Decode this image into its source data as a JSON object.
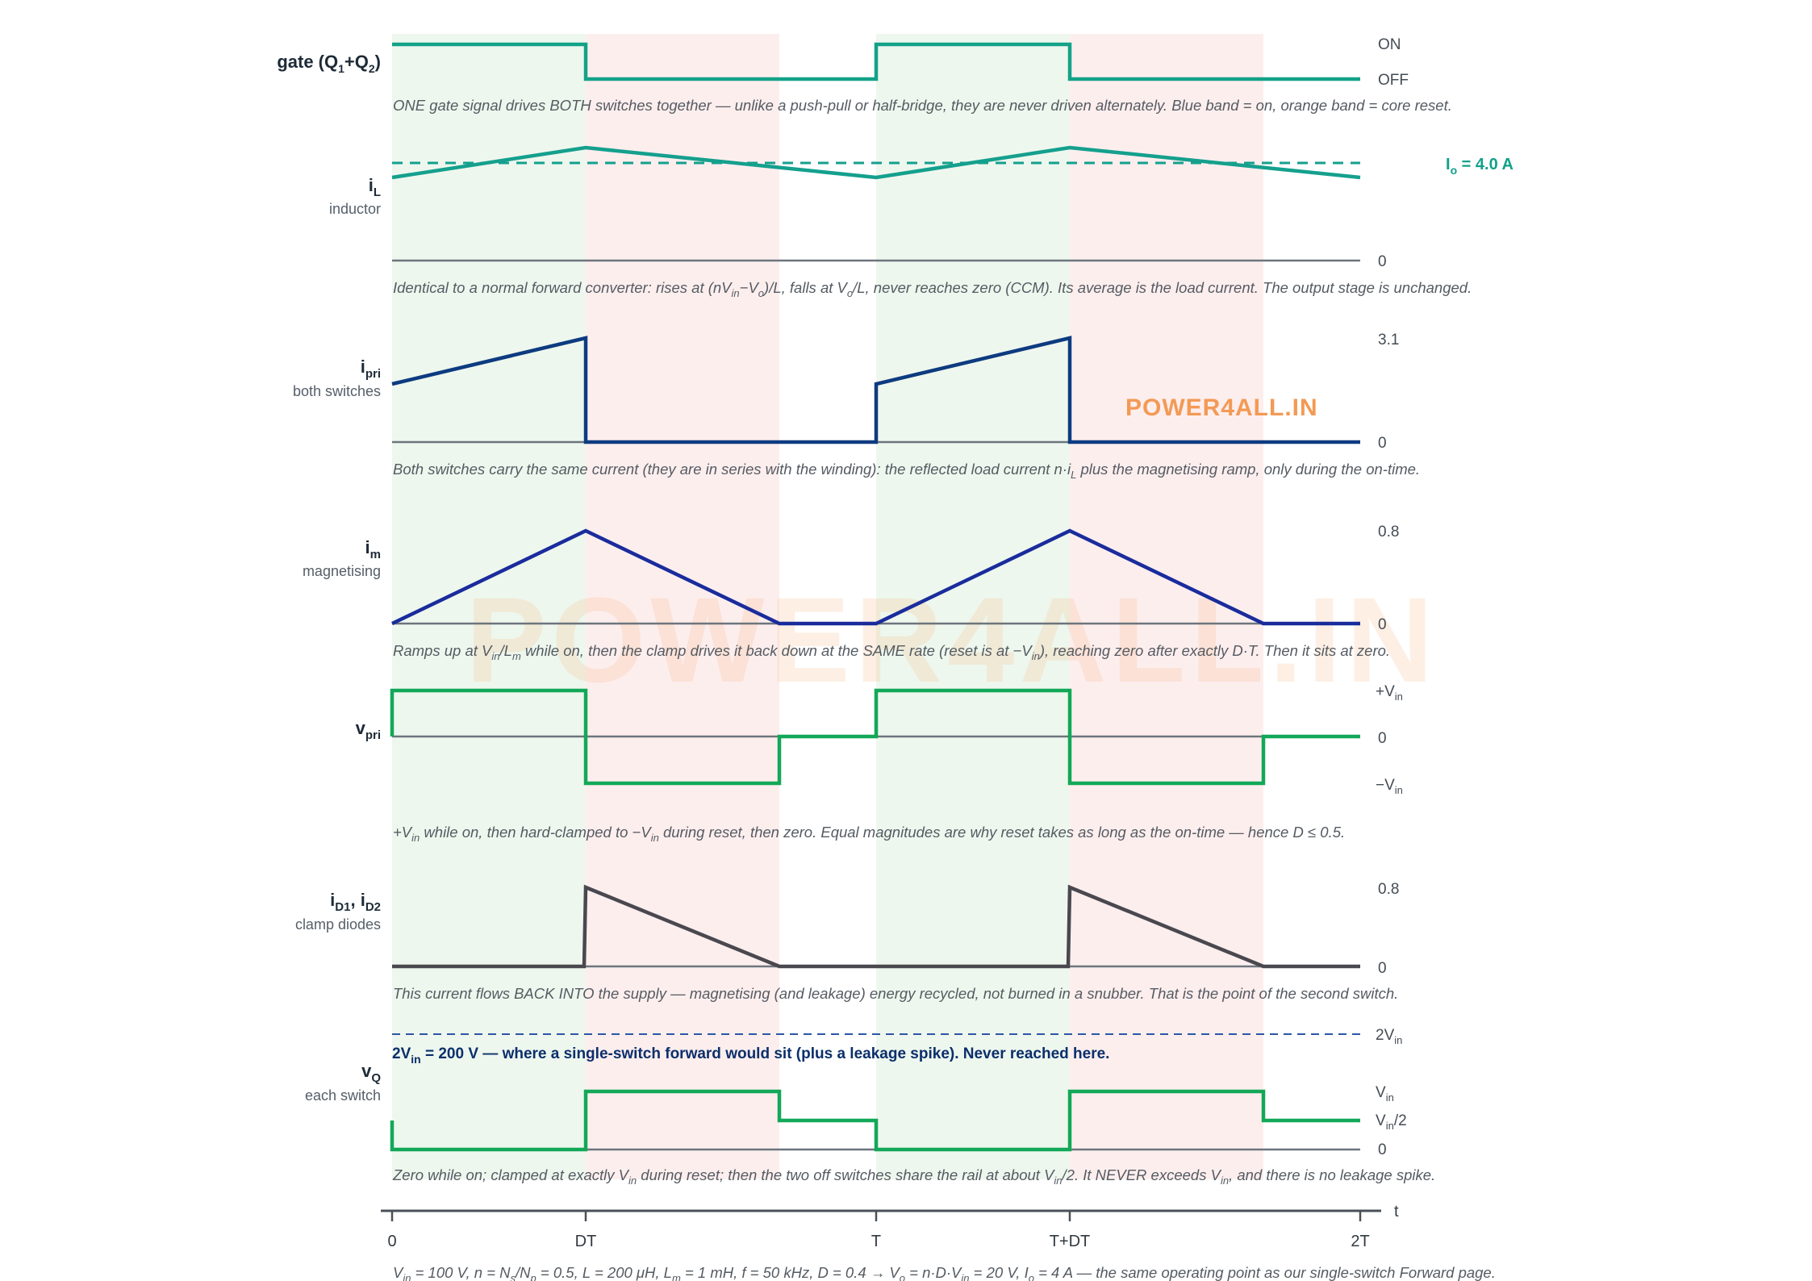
{
  "diagram": {
    "colors": {
      "on_band": "#eef7ee",
      "reset_band": "#fdeeee",
      "gate": "#13a288",
      "inductor": "#14a08d",
      "primary": "#0d3b80",
      "magnetising": "#1a2c9c",
      "vpri": "#12a858",
      "diode": "#4a484f",
      "vq": "#12a858",
      "baseline": "#6c757c",
      "dashed_ref": "#2c56a6"
    },
    "watermark": {
      "small": "POWER4ALL.IN",
      "large": "POWER4ALL.IN"
    },
    "time_axis": {
      "ticks": [
        "0",
        "DT",
        "T",
        "T+DT",
        "2T"
      ],
      "label": "t"
    },
    "panels": {
      "gate": {
        "label_main": "gate (Q",
        "label_s1": "1",
        "label_plus": "+Q",
        "label_s2": "2",
        "label_close": ")",
        "tick_on": "ON",
        "tick_off": "OFF",
        "note": "ONE gate signal drives BOTH switches together — unlike a push-pull or half-bridge, they are never driven alternately. Blue band = on, orange band = core reset."
      },
      "il": {
        "label_main": "i",
        "label_sub": "L",
        "label_desc": "inductor",
        "tick_zero": "0",
        "io_main": "I",
        "io_sub": "o",
        "io_value": " = 4.0 A",
        "note": {
          "p1": "Identical to a normal forward converter: rises at (nV",
          "s1": "in",
          "p2": "−V",
          "s2": "o",
          "p3": ")/L, falls at V",
          "s3": "o",
          "p4": "/L, never reaches zero (CCM). Its average is the load current. The output stage is unchanged."
        }
      },
      "ipri": {
        "label_main": "i",
        "label_sub": "pri",
        "label_desc": "both switches",
        "tick_top": "3.1",
        "tick_zero": "0",
        "note": {
          "p1": "Both switches carry the same current (they are in series with the winding): the reflected load current n·i",
          "s1": "L",
          "p2": " plus the magnetising ramp, only during the on-time."
        }
      },
      "im": {
        "label_main": "i",
        "label_sub": "m",
        "label_desc": "magnetising",
        "tick_top": "0.8",
        "tick_zero": "0",
        "note": {
          "p1": "Ramps up at V",
          "s1": "in",
          "p2": "/L",
          "s2": "m",
          "p3": " while on, then the clamp drives it back down at the SAME rate (reset is at −V",
          "s3": "in",
          "p4": "), reaching zero after exactly D·T. Then it sits at zero."
        }
      },
      "vpri": {
        "label_main": "v",
        "label_sub": "pri",
        "tick_top_main": "+V",
        "tick_top_sub": "in",
        "tick_zero": "0",
        "tick_bot_main": "−V",
        "tick_bot_sub": "in",
        "note": {
          "p1": "+V",
          "s1": "in",
          "p2": " while on, then hard-clamped to −V",
          "s2": "in",
          "p3": " during reset, then zero. Equal magnitudes are why reset takes as long as the on-time — hence D ≤ 0.5."
        }
      },
      "id": {
        "label_m1": "i",
        "label_s1": "D1",
        "label_sep": ", i",
        "label_s2": "D2",
        "label_desc": "clamp diodes",
        "tick_top": "0.8",
        "tick_zero": "0",
        "note": "This current flows BACK INTO the supply — magnetising (and leakage) energy recycled, not burned in a snubber. That is the point of the second switch."
      },
      "vq": {
        "label_main": "v",
        "label_sub": "Q",
        "label_desc": "each switch",
        "tick_2v_main": "2V",
        "tick_2v_sub": "in",
        "tick_v_main": "V",
        "tick_v_sub": "in",
        "tick_half_main": "V",
        "tick_half_sub": "in",
        "tick_half_tail": "/2",
        "tick_zero": "0",
        "callout": {
          "p1": "2V",
          "s1": "in",
          "p2": " = 200 V — where a single-switch forward would sit (plus a leakage spike). Never reached here."
        },
        "note": {
          "p1": "Zero while on; clamped at exactly V",
          "s1": "in",
          "p2": " during reset; then the two off switches share the rail at about V",
          "s2": "in",
          "p3": "/2. It NEVER exceeds V",
          "s3": "in",
          "p4": ", and there is no leakage spike."
        }
      }
    },
    "footer": {
      "p1": "V",
      "s1": "in",
      "p2": " = 100 V, n = N",
      "s2": "s",
      "p3": "/N",
      "s3": "p",
      "p4": " = 0.5, L = 200 μH, L",
      "s4": "m",
      "p5": " = 1 mH, f = 50 kHz, D = 0.4 → V",
      "s5": "o",
      "p6": " = n·D·V",
      "s6": "in",
      "p7": " = 20 V, I",
      "s7": "o",
      "p8": " = 4 A — the same operating point as our single-switch Forward page."
    }
  }
}
